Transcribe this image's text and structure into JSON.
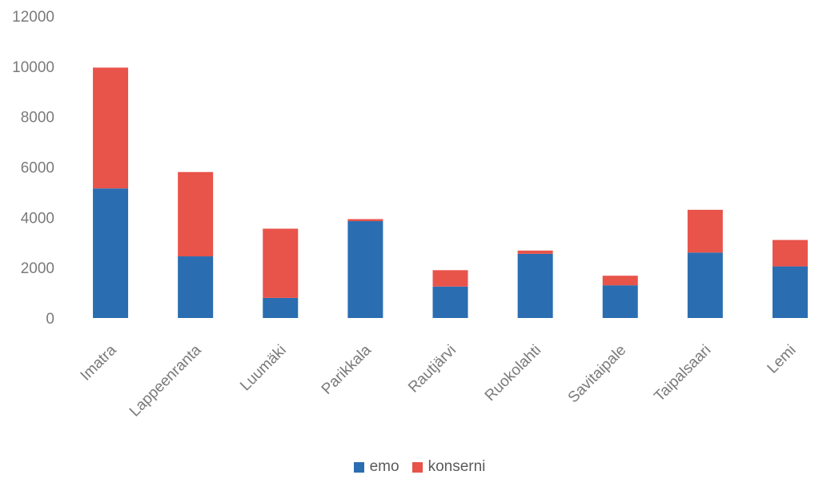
{
  "chart_data": {
    "type": "bar",
    "stacked": true,
    "categories": [
      "Imatra",
      "Lappeenranta",
      "Luumäki",
      "Parikkala",
      "Rautjärvi",
      "Ruokolahti",
      "Savitaipale",
      "Taipalsaari",
      "Lemi"
    ],
    "series": [
      {
        "name": "emo",
        "color": "#2a6db1",
        "values": [
          5150,
          2450,
          800,
          3850,
          1250,
          2550,
          1300,
          2600,
          2050
        ]
      },
      {
        "name": "konserni",
        "color": "#e8534a",
        "values": [
          4800,
          3350,
          2750,
          80,
          650,
          130,
          380,
          1700,
          1050
        ]
      }
    ],
    "yticks": [
      "0",
      "2000",
      "4000",
      "6000",
      "8000",
      "10000",
      "12000"
    ],
    "ylim": [
      0,
      12000
    ],
    "grid": false,
    "legend_position": "bottom"
  }
}
